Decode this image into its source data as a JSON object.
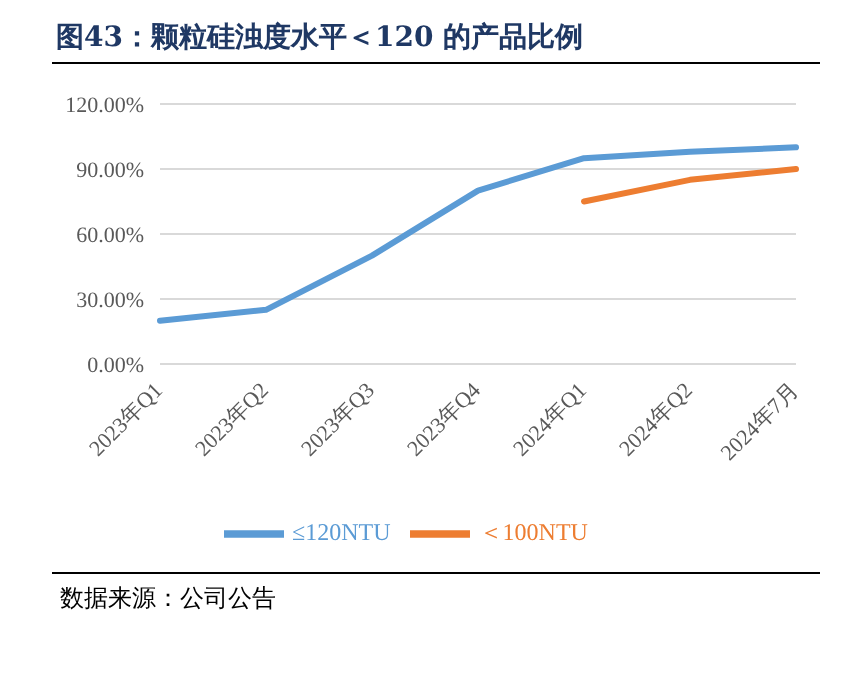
{
  "chart_data": {
    "type": "line",
    "title": "图43：颗粒硅浊度水平＜120 的产品比例",
    "categories": [
      "2023年Q1",
      "2023年Q2",
      "2023年Q3",
      "2023年Q4",
      "2024年Q1",
      "2024年Q2",
      "2024年7月"
    ],
    "series": [
      {
        "name": "≤120NTU",
        "color": "#5b9bd5",
        "values": [
          20,
          25,
          50,
          80,
          95,
          98,
          100
        ]
      },
      {
        "name": "＜100NTU",
        "color": "#ed7d31",
        "values": [
          null,
          null,
          null,
          null,
          75,
          85,
          90
        ]
      }
    ],
    "ylim": [
      0,
      120
    ],
    "yticks": [
      {
        "value": 0,
        "label": "0.00%"
      },
      {
        "value": 30,
        "label": "30.00%"
      },
      {
        "value": 60,
        "label": "60.00%"
      },
      {
        "value": 90,
        "label": "90.00%"
      },
      {
        "value": 120,
        "label": "120.00%"
      }
    ],
    "grid": "y",
    "legend": "bottom",
    "marker": "none",
    "line_style": "solid",
    "annotations": [
      "数据来源：公司公告"
    ]
  }
}
